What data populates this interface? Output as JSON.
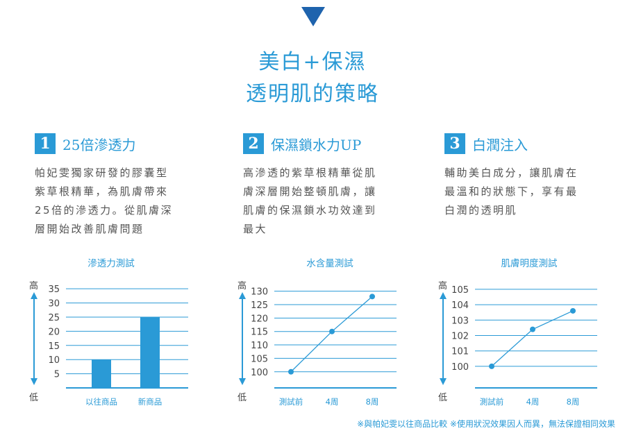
{
  "header": {
    "title_line1": "美白+保濕",
    "title_line2": "透明肌的策略"
  },
  "features": [
    {
      "number": "1",
      "title": "25倍滲透力",
      "lines": [
        "帕妃雯獨家研發的膠囊型",
        "紫草根精華，為肌膚帶來",
        "25倍的滲透力。從肌膚深",
        "層開始改善肌膚問題"
      ]
    },
    {
      "number": "2",
      "title": "保濕鎖水力UP",
      "lines": [
        "高滲透的紫草根精華從肌",
        "膚深層開始整頓肌膚，讓",
        "肌膚的保濕鎖水功效達到",
        "最大"
      ]
    },
    {
      "number": "3",
      "title": "白潤注入",
      "lines": [
        "輔助美白成分，讓肌膚在",
        "最溫和的狀態下，享有最",
        "白潤的透明肌"
      ]
    }
  ],
  "axis_words": {
    "high": "高",
    "low": "低"
  },
  "chart_data": [
    {
      "type": "bar",
      "title": "滲透力測試",
      "categories": [
        "以往商品",
        "新商品"
      ],
      "values": [
        10,
        25
      ],
      "yticks": [
        5,
        10,
        15,
        20,
        25,
        30,
        35
      ],
      "ylim": [
        0,
        37
      ],
      "color": "#2a9ad6",
      "grid": true
    },
    {
      "type": "line",
      "title": "水含量測試",
      "categories": [
        "測試前",
        "4周",
        "8周"
      ],
      "values": [
        100,
        115,
        128
      ],
      "yticks": [
        100,
        105,
        110,
        115,
        120,
        125,
        130
      ],
      "ylim": [
        94,
        133
      ],
      "color": "#2a9ad6",
      "grid": true
    },
    {
      "type": "line",
      "title": "肌膚明度測試",
      "categories": [
        "測試前",
        "4周",
        "8周"
      ],
      "values": [
        100,
        102.4,
        103.6
      ],
      "yticks": [
        100,
        101,
        102,
        103,
        104,
        105
      ],
      "ylim": [
        98.6,
        105.4
      ],
      "color": "#2a9ad6",
      "grid": true
    }
  ],
  "footnote": "※與帕妃雯以往商品比較 ※使用狀況效果因人而異，無法保證相同效果",
  "colors": {
    "accent": "#2a9ad6",
    "arrow": "#1e63ad"
  }
}
